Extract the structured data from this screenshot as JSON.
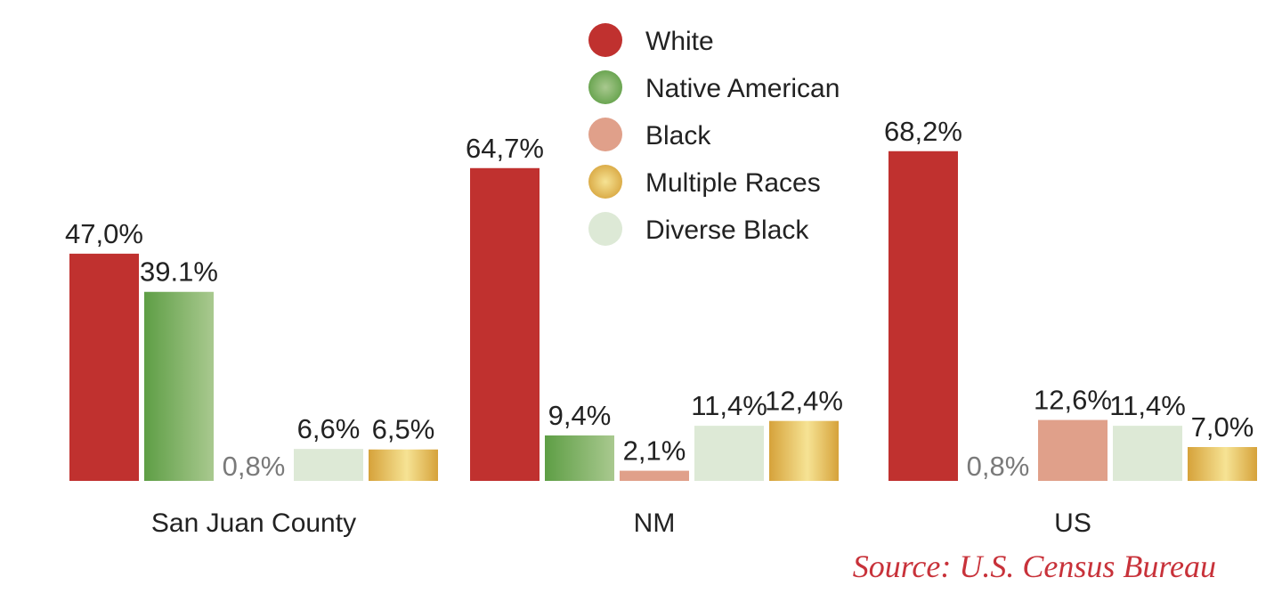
{
  "colors": {
    "White": "#c0312f",
    "Native American": "#6fa856",
    "Black": "#e0a08a",
    "Multiple Races": "#e3b848",
    "Diverse Black": "#dde9d6",
    "muted_label": "#7a7a7a",
    "source": "#c8323a"
  },
  "legend": [
    "White",
    "Native American",
    "Black",
    "Multiple Races",
    "Diverse Black"
  ],
  "source": "Source: U.S. Census Bureau",
  "chart_data": {
    "type": "bar",
    "categories": [
      "San Juan County",
      "NM",
      "US"
    ],
    "ylim": [
      0,
      70
    ],
    "legend_position": "top-center",
    "grid": false,
    "groups": [
      {
        "category": "San Juan County",
        "bars": [
          {
            "series": "White",
            "value": 47.0,
            "label": "47,0%"
          },
          {
            "series": "Native American",
            "value": 39.1,
            "label": "39.1%"
          },
          {
            "series": "Black",
            "value": 0.8,
            "label": "0,8%"
          },
          {
            "series": "Diverse Black",
            "value": 6.6,
            "label": "6,6%"
          },
          {
            "series": "Multiple Races",
            "value": 6.5,
            "label": "6,5%"
          }
        ]
      },
      {
        "category": "NM",
        "bars": [
          {
            "series": "White",
            "value": 64.7,
            "label": "64,7%"
          },
          {
            "series": "Native American",
            "value": 9.4,
            "label": "9,4%"
          },
          {
            "series": "Black",
            "value": 2.1,
            "label": "2,1%"
          },
          {
            "series": "Diverse Black",
            "value": 11.4,
            "label": "11,4%"
          },
          {
            "series": "Multiple Races",
            "value": 12.4,
            "label": "12,4%"
          }
        ]
      },
      {
        "category": "US",
        "bars": [
          {
            "series": "White",
            "value": 68.2,
            "label": "68,2%"
          },
          {
            "series": "Native American",
            "value": 0.8,
            "label": "0,8%"
          },
          {
            "series": "Black",
            "value": 12.6,
            "label": "12,6%"
          },
          {
            "series": "Diverse Black",
            "value": 11.4,
            "label": "11,4%"
          },
          {
            "series": "Multiple Races",
            "value": 7.0,
            "label": "7,0%"
          }
        ]
      }
    ]
  }
}
